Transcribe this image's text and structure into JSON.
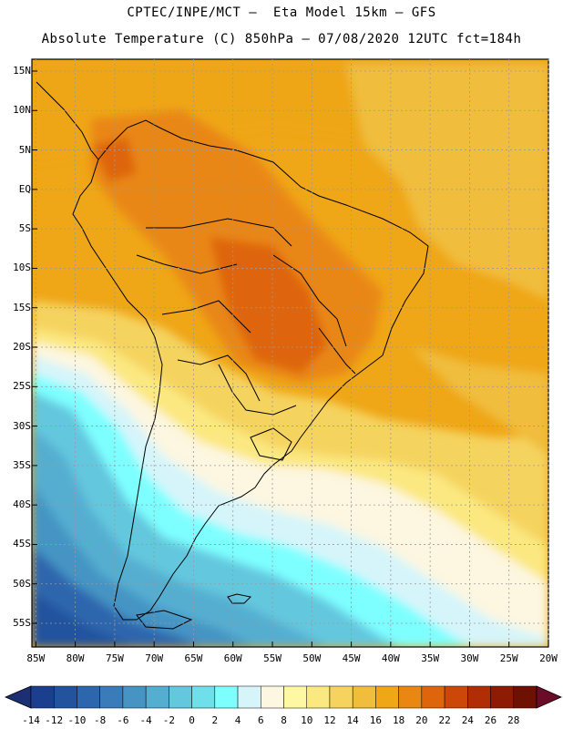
{
  "header": {
    "line1": "CPTEC/INPE/MCT –  Eta Model 15km – GFS",
    "line2": "Absolute Temperature (C) 850hPa – 07/08/2020 12UTC fct=184h"
  },
  "map": {
    "lat_labels": [
      "15N",
      "10N",
      "5N",
      "EQ",
      "5S",
      "10S",
      "15S",
      "20S",
      "25S",
      "30S",
      "35S",
      "40S",
      "45S",
      "50S",
      "55S"
    ],
    "lon_labels": [
      "85W",
      "80W",
      "75W",
      "70W",
      "65W",
      "60W",
      "55W",
      "50W",
      "45W",
      "40W",
      "35W",
      "30W",
      "25W",
      "20W"
    ],
    "lat_values": [
      15,
      10,
      5,
      0,
      -5,
      -10,
      -15,
      -20,
      -25,
      -30,
      -35,
      -40,
      -45,
      -50,
      -55
    ],
    "lon_values": [
      -85,
      -80,
      -75,
      -70,
      -65,
      -60,
      -55,
      -50,
      -45,
      -40,
      -35,
      -30,
      -25,
      -20
    ],
    "extent": {
      "lon_min": -85.5,
      "lon_max": -20,
      "lat_min": -58,
      "lat_max": 16.5
    }
  },
  "colorbar": {
    "labels": [
      "-14",
      "-12",
      "-10",
      "-8",
      "-6",
      "-4",
      "-2",
      "0",
      "2",
      "4",
      "6",
      "8",
      "10",
      "12",
      "14",
      "16",
      "18",
      "20",
      "22",
      "24",
      "26",
      "28"
    ],
    "colors": [
      "#1b3f8e",
      "#23529e",
      "#2e66ad",
      "#3a7cb9",
      "#4594c4",
      "#54aed0",
      "#63c7de",
      "#6fe0ea",
      "#7effff",
      "#d6f5fa",
      "#fdf6e0",
      "#fef8a2",
      "#fbe880",
      "#f5d35e",
      "#f0bd3c",
      "#efa617",
      "#e98712",
      "#de650c",
      "#cc4708",
      "#b02d05",
      "#8e1c04",
      "#6e1103"
    ],
    "underflow_color": "#1c2f73",
    "overflow_color": "#6b0d28"
  }
}
